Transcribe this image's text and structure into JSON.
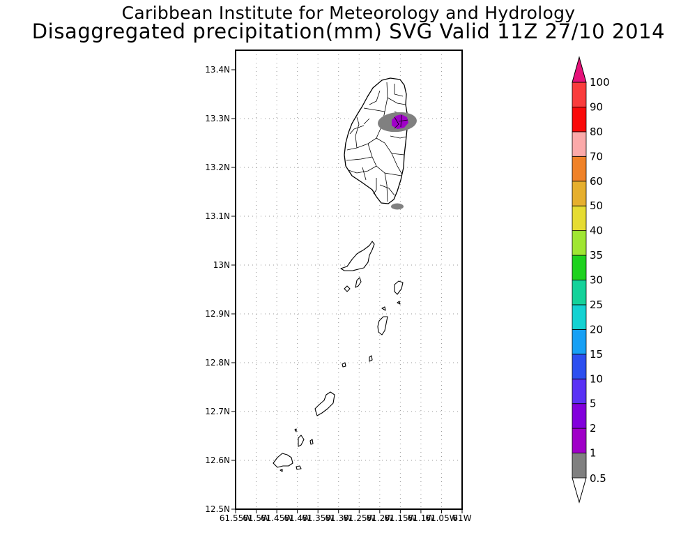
{
  "title": {
    "line1": "Caribbean Institute for Meteorology and Hydrology",
    "line2": "Disaggregated precipitation(mm) SVG Valid 11Z 27/10 2014"
  },
  "map": {
    "lon_range": [
      -61.55,
      -61.0
    ],
    "lat_range": [
      12.5,
      13.44
    ],
    "grid": "dotted",
    "lat_ticks": [
      {
        "value": 13.4,
        "label": "13.4N"
      },
      {
        "value": 13.3,
        "label": "13.3N"
      },
      {
        "value": 13.2,
        "label": "13.2N"
      },
      {
        "value": 13.1,
        "label": "13.1N"
      },
      {
        "value": 13.0,
        "label": "13N"
      },
      {
        "value": 12.9,
        "label": "12.9N"
      },
      {
        "value": 12.8,
        "label": "12.8N"
      },
      {
        "value": 12.7,
        "label": "12.7N"
      },
      {
        "value": 12.6,
        "label": "12.6N"
      },
      {
        "value": 12.5,
        "label": "12.5N"
      }
    ],
    "lon_ticks": [
      {
        "value": -61.55,
        "label": "61.55W"
      },
      {
        "value": -61.5,
        "label": "61.5W"
      },
      {
        "value": -61.45,
        "label": "61.45W"
      },
      {
        "value": -61.4,
        "label": "61.4W"
      },
      {
        "value": -61.35,
        "label": "61.35W"
      },
      {
        "value": -61.3,
        "label": "61.3W"
      },
      {
        "value": -61.25,
        "label": "61.25W"
      },
      {
        "value": -61.2,
        "label": "61.2W"
      },
      {
        "value": -61.15,
        "label": "61.15W"
      },
      {
        "value": -61.1,
        "label": "61.1W"
      },
      {
        "value": -61.05,
        "label": "61.05W"
      },
      {
        "value": -61.0,
        "label": "61W"
      }
    ]
  },
  "precip_areas": [
    {
      "name": "north-east-st-vincent",
      "range": "0.5-1",
      "color": "#808080"
    },
    {
      "name": "north-east-st-vincent-core",
      "range": "1-2",
      "color": "#a000c8"
    },
    {
      "name": "south-offshore",
      "range": "0.5-1",
      "color": "#808080"
    }
  ],
  "colorbar": {
    "min_label": "0.5",
    "levels": [
      {
        "label": "1",
        "color": "#808080"
      },
      {
        "label": "2",
        "color": "#a000c8"
      },
      {
        "label": "5",
        "color": "#8200dc"
      },
      {
        "label": "10",
        "color": "#5a32f5"
      },
      {
        "label": "15",
        "color": "#2c4ff0"
      },
      {
        "label": "20",
        "color": "#17a0f5"
      },
      {
        "label": "25",
        "color": "#14d2d2"
      },
      {
        "label": "30",
        "color": "#14d29a"
      },
      {
        "label": "35",
        "color": "#1ed21e"
      },
      {
        "label": "40",
        "color": "#a0e632"
      },
      {
        "label": "50",
        "color": "#e6dc32"
      },
      {
        "label": "60",
        "color": "#e6af2d"
      },
      {
        "label": "70",
        "color": "#f08228"
      },
      {
        "label": "80",
        "color": "#fbaaaa"
      },
      {
        "label": "90",
        "color": "#fa0a0a"
      },
      {
        "label": "100",
        "color": "#fa3c3c"
      }
    ],
    "over_color": "#e6127a",
    "under_color": "#ffffff"
  }
}
